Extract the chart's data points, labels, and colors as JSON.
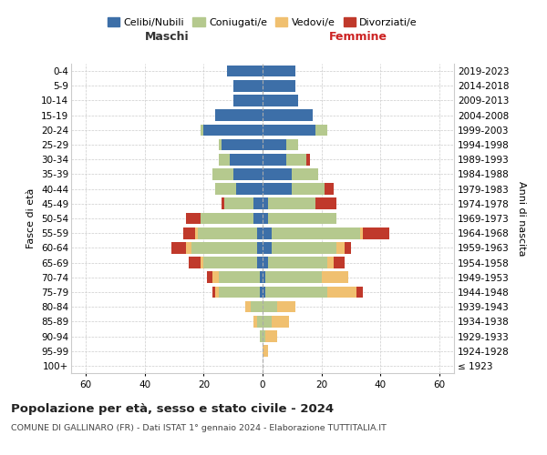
{
  "age_groups": [
    "100+",
    "95-99",
    "90-94",
    "85-89",
    "80-84",
    "75-79",
    "70-74",
    "65-69",
    "60-64",
    "55-59",
    "50-54",
    "45-49",
    "40-44",
    "35-39",
    "30-34",
    "25-29",
    "20-24",
    "15-19",
    "10-14",
    "5-9",
    "0-4"
  ],
  "birth_years": [
    "≤ 1923",
    "1924-1928",
    "1929-1933",
    "1934-1938",
    "1939-1943",
    "1944-1948",
    "1949-1953",
    "1954-1958",
    "1959-1963",
    "1964-1968",
    "1969-1973",
    "1974-1978",
    "1979-1983",
    "1984-1988",
    "1989-1993",
    "1994-1998",
    "1999-2003",
    "2004-2008",
    "2009-2013",
    "2014-2018",
    "2019-2023"
  ],
  "males": {
    "celibi": [
      0,
      0,
      0,
      0,
      0,
      1,
      1,
      2,
      2,
      2,
      3,
      3,
      9,
      10,
      11,
      14,
      20,
      16,
      10,
      10,
      12
    ],
    "coniugati": [
      0,
      0,
      1,
      2,
      4,
      14,
      14,
      18,
      22,
      20,
      18,
      10,
      7,
      7,
      4,
      1,
      1,
      0,
      0,
      0,
      0
    ],
    "vedovi": [
      0,
      0,
      0,
      1,
      2,
      1,
      2,
      1,
      2,
      1,
      0,
      0,
      0,
      0,
      0,
      0,
      0,
      0,
      0,
      0,
      0
    ],
    "divorziati": [
      0,
      0,
      0,
      0,
      0,
      1,
      2,
      4,
      5,
      4,
      5,
      1,
      0,
      0,
      0,
      0,
      0,
      0,
      0,
      0,
      0
    ]
  },
  "females": {
    "nubili": [
      0,
      0,
      0,
      0,
      0,
      1,
      1,
      2,
      3,
      3,
      2,
      2,
      10,
      10,
      8,
      8,
      18,
      17,
      12,
      11,
      11
    ],
    "coniugate": [
      0,
      0,
      1,
      3,
      5,
      21,
      19,
      20,
      22,
      30,
      23,
      16,
      11,
      9,
      7,
      4,
      4,
      0,
      0,
      0,
      0
    ],
    "vedove": [
      0,
      2,
      4,
      6,
      6,
      10,
      9,
      2,
      3,
      1,
      0,
      0,
      0,
      0,
      0,
      0,
      0,
      0,
      0,
      0,
      0
    ],
    "divorziate": [
      0,
      0,
      0,
      0,
      0,
      2,
      0,
      4,
      2,
      9,
      0,
      7,
      3,
      0,
      1,
      0,
      0,
      0,
      0,
      0,
      0
    ]
  },
  "colors": {
    "celibi": "#3d6fa8",
    "coniugati": "#b5c98e",
    "vedovi": "#f0c070",
    "divorziati": "#c0392b"
  },
  "title": "Popolazione per età, sesso e stato civile - 2024",
  "subtitle": "COMUNE DI GALLINARO (FR) - Dati ISTAT 1° gennaio 2024 - Elaborazione TUTTITALIA.IT",
  "ylabel_left": "Fasce di età",
  "ylabel_right": "Anni di nascita",
  "xlabel_left": "Maschi",
  "xlabel_right": "Femmine",
  "xlim": 65,
  "background_color": "#ffffff",
  "grid_color": "#cccccc"
}
